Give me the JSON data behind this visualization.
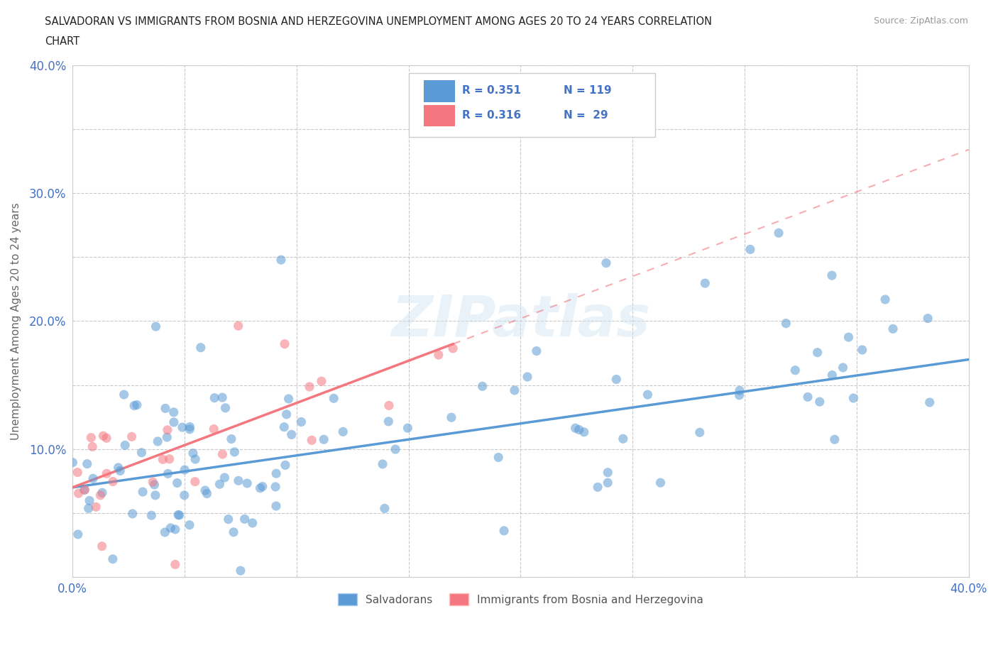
{
  "title_line1": "SALVADORAN VS IMMIGRANTS FROM BOSNIA AND HERZEGOVINA UNEMPLOYMENT AMONG AGES 20 TO 24 YEARS CORRELATION",
  "title_line2": "CHART",
  "source": "Source: ZipAtlas.com",
  "ylabel": "Unemployment Among Ages 20 to 24 years",
  "xlim": [
    0.0,
    0.4
  ],
  "ylim": [
    0.0,
    0.4
  ],
  "salvadoran_color": "#5b9bd5",
  "bosnia_color": "#f4777f",
  "salvadoran_R": 0.351,
  "salvadoran_N": 119,
  "bosnia_R": 0.316,
  "bosnia_N": 29,
  "watermark": "ZIPatlas",
  "background_color": "#ffffff",
  "legend_label_salv": "Salvadorans",
  "legend_label_bosn": "Immigrants from Bosnia and Herzegovina",
  "tick_color": "#4472c4",
  "ytick_labels": [
    "",
    "",
    "10.0%",
    "",
    "20.0%",
    "",
    "30.0%",
    "",
    "40.0%"
  ],
  "xtick_labels": [
    "0.0%",
    "",
    "",
    "",
    "",
    "",
    "",
    "",
    "40.0%"
  ]
}
